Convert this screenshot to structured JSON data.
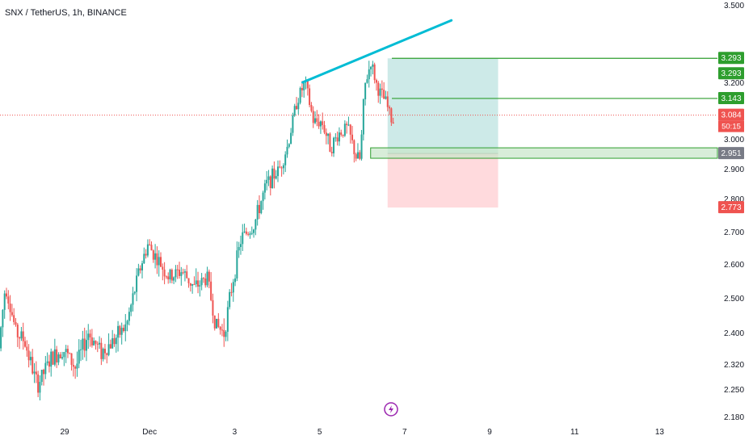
{
  "symbol_title": "SNX / TetherUS, 1h, BINANCE",
  "colors": {
    "up": "#26a69a",
    "down": "#ef5350",
    "trendline": "#00bcd4",
    "target_line": "#2e9e2e",
    "profit_zone": "#b2dfdb",
    "loss_zone": "#ffcdd2",
    "demand_zone": "#c8e6c9",
    "text": "#131722"
  },
  "chart_data": {
    "type": "candlestick",
    "title": "SNX / TetherUS, 1h, BINANCE",
    "ylim": [
      2.17,
      3.52
    ],
    "xlim_days": [
      27.5,
      44.8
    ],
    "x_ticks": [
      {
        "label": "29",
        "day": 29
      },
      {
        "label": "Dec",
        "day": 31
      },
      {
        "label": "3",
        "day": 33
      },
      {
        "label": "5",
        "day": 35
      },
      {
        "label": "7",
        "day": 37
      },
      {
        "label": "9",
        "day": 39
      },
      {
        "label": "11",
        "day": 41
      },
      {
        "label": "13",
        "day": 43
      }
    ],
    "y_ticks": [
      "3.500",
      "3.200",
      "3.000",
      "2.900",
      "2.800",
      "2.700",
      "2.600",
      "2.500",
      "2.400",
      "2.320",
      "2.250",
      "2.180"
    ],
    "price_series": [
      {
        "day": 27.5,
        "price": 2.36
      },
      {
        "day": 27.65,
        "price": 2.54
      },
      {
        "day": 27.9,
        "price": 2.4
      },
      {
        "day": 28.1,
        "price": 2.38
      },
      {
        "day": 28.4,
        "price": 2.26
      },
      {
        "day": 28.7,
        "price": 2.33
      },
      {
        "day": 29.0,
        "price": 2.36
      },
      {
        "day": 29.3,
        "price": 2.31
      },
      {
        "day": 29.6,
        "price": 2.4
      },
      {
        "day": 29.9,
        "price": 2.35
      },
      {
        "day": 30.2,
        "price": 2.38
      },
      {
        "day": 30.5,
        "price": 2.42
      },
      {
        "day": 30.8,
        "price": 2.58
      },
      {
        "day": 31.0,
        "price": 2.66
      },
      {
        "day": 31.2,
        "price": 2.62
      },
      {
        "day": 31.5,
        "price": 2.56
      },
      {
        "day": 31.8,
        "price": 2.58
      },
      {
        "day": 32.1,
        "price": 2.53
      },
      {
        "day": 32.4,
        "price": 2.56
      },
      {
        "day": 32.6,
        "price": 2.42
      },
      {
        "day": 32.8,
        "price": 2.4
      },
      {
        "day": 33.0,
        "price": 2.55
      },
      {
        "day": 33.2,
        "price": 2.68
      },
      {
        "day": 33.5,
        "price": 2.72
      },
      {
        "day": 33.8,
        "price": 2.85
      },
      {
        "day": 34.1,
        "price": 2.9
      },
      {
        "day": 34.3,
        "price": 2.98
      },
      {
        "day": 34.5,
        "price": 3.13
      },
      {
        "day": 34.7,
        "price": 3.2
      },
      {
        "day": 34.9,
        "price": 3.06
      },
      {
        "day": 35.1,
        "price": 3.06
      },
      {
        "day": 35.3,
        "price": 2.97
      },
      {
        "day": 35.5,
        "price": 3.02
      },
      {
        "day": 35.7,
        "price": 3.04
      },
      {
        "day": 35.9,
        "price": 2.94
      },
      {
        "day": 36.0,
        "price": 2.93
      },
      {
        "day": 36.1,
        "price": 3.18
      },
      {
        "day": 36.25,
        "price": 3.28
      },
      {
        "day": 36.4,
        "price": 3.18
      },
      {
        "day": 36.6,
        "price": 3.13
      },
      {
        "day": 36.75,
        "price": 3.06
      }
    ],
    "annotations": {
      "trendline": {
        "from": {
          "day": 34.6,
          "price": 3.2
        },
        "to": {
          "day": 38.1,
          "price": 3.44
        }
      },
      "target_lines": [
        {
          "price": 3.293,
          "from_day": 36.7,
          "label": "3.293"
        },
        {
          "price": 3.143,
          "from_day": 36.7,
          "label": "3.143"
        }
      ],
      "position_box": {
        "from_day": 36.6,
        "to_day": 39.2,
        "entry": 2.951,
        "take_profit": 3.293,
        "stop_loss": 2.773
      },
      "demand_zone": {
        "from_day": 36.2,
        "to": "right_edge",
        "low": 2.935,
        "high": 2.97
      }
    },
    "price_labels": [
      {
        "text": "3.293",
        "price": 3.293,
        "color": "#2e9e2e"
      },
      {
        "text": "3.293",
        "price": 3.293,
        "color": "#2e9e2e",
        "offset": 1
      },
      {
        "text": "3.143",
        "price": 3.143,
        "color": "#2e9e2e"
      },
      {
        "text": "3.084",
        "price": 3.084,
        "color": "#ef5350"
      },
      {
        "text": "2.951",
        "price": 2.951,
        "color": "#787b86"
      },
      {
        "text": "2.773",
        "price": 2.773,
        "color": "#ef5350"
      }
    ],
    "current_price": 3.084,
    "countdown": "50:15",
    "grid": false
  },
  "lightning_icon": "lightning-icon"
}
